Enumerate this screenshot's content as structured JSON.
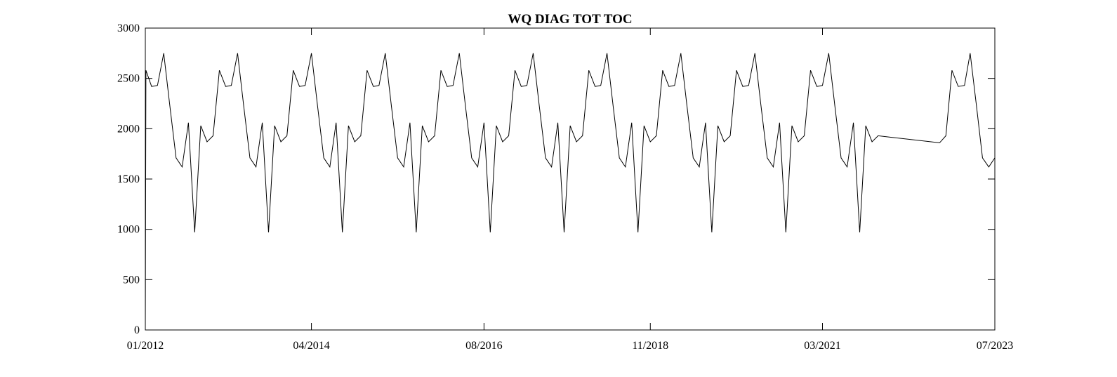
{
  "chart_data": {
    "type": "line",
    "title": "WQ DIAG TOT TOC",
    "xlabel": "",
    "ylabel": "",
    "ylim": [
      0,
      3000
    ],
    "xlim": [
      "2012-01-01",
      "2023-07-01"
    ],
    "grid": false,
    "yticks": [
      "0",
      "500",
      "1000",
      "1500",
      "2000",
      "2500",
      "3000"
    ],
    "xticks": [
      {
        "label": "01/2012",
        "date": "2012-01-01"
      },
      {
        "label": "04/2014",
        "date": "2014-04-01"
      },
      {
        "label": "08/2016",
        "date": "2016-08-01"
      },
      {
        "label": "11/2018",
        "date": "2018-11-01"
      },
      {
        "label": "03/2021",
        "date": "2021-03-01"
      },
      {
        "label": "07/2023",
        "date": "2023-07-01"
      }
    ],
    "series": [
      {
        "color": "#000000",
        "x": [
          "2012-01-01",
          "2012-01-04",
          "2012-02-01",
          "2012-03-01",
          "2012-04-01",
          "2012-05-01",
          "2012-06-01",
          "2012-07-01",
          "2012-08-01",
          "2012-09-01",
          "2012-10-01",
          "2012-11-01",
          "2012-12-01",
          "2013-01-01",
          "2013-02-01",
          "2013-03-01",
          "2013-04-01",
          "2013-05-01",
          "2013-06-01",
          "2013-07-01",
          "2013-08-01",
          "2013-09-01",
          "2013-10-01",
          "2013-11-01",
          "2013-12-01",
          "2014-01-01",
          "2014-02-01",
          "2014-03-01",
          "2014-04-01",
          "2014-05-01",
          "2014-06-01",
          "2014-07-01",
          "2014-08-01",
          "2014-09-01",
          "2014-10-01",
          "2014-11-01",
          "2014-12-01",
          "2015-01-01",
          "2015-02-01",
          "2015-03-01",
          "2015-04-01",
          "2015-05-01",
          "2015-06-01",
          "2015-07-01",
          "2015-08-01",
          "2015-09-01",
          "2015-10-01",
          "2015-11-01",
          "2015-12-01",
          "2016-01-01",
          "2016-02-01",
          "2016-03-01",
          "2016-04-01",
          "2016-05-01",
          "2016-06-01",
          "2016-07-01",
          "2016-08-01",
          "2016-09-01",
          "2016-10-01",
          "2016-11-01",
          "2016-12-01",
          "2017-01-01",
          "2017-02-01",
          "2017-03-01",
          "2017-04-01",
          "2017-05-01",
          "2017-06-01",
          "2017-07-01",
          "2017-08-01",
          "2017-09-01",
          "2017-10-01",
          "2017-11-01",
          "2017-12-01",
          "2018-01-01",
          "2018-02-01",
          "2018-03-01",
          "2018-04-01",
          "2018-05-01",
          "2018-06-01",
          "2018-07-01",
          "2018-08-01",
          "2018-09-01",
          "2018-10-01",
          "2018-11-01",
          "2018-12-01",
          "2019-01-01",
          "2019-02-01",
          "2019-03-01",
          "2019-04-01",
          "2019-05-01",
          "2019-06-01",
          "2019-07-01",
          "2019-08-01",
          "2019-09-01",
          "2019-10-01",
          "2019-11-01",
          "2019-12-01",
          "2020-01-01",
          "2020-02-01",
          "2020-03-01",
          "2020-04-01",
          "2020-05-01",
          "2020-06-01",
          "2020-07-01",
          "2020-08-01",
          "2020-09-01",
          "2020-10-01",
          "2020-11-01",
          "2020-12-01",
          "2021-01-01",
          "2021-02-01",
          "2021-03-01",
          "2021-04-01",
          "2021-05-01",
          "2021-06-01",
          "2021-07-01",
          "2021-08-01",
          "2021-09-01",
          "2021-10-01",
          "2021-11-01",
          "2021-12-01",
          "2022-10-01",
          "2022-11-01",
          "2022-12-01",
          "2023-01-01",
          "2023-02-01",
          "2023-03-01",
          "2023-04-01",
          "2023-05-01",
          "2023-06-01",
          "2023-07-01"
        ],
        "y": [
          0,
          2580,
          2420,
          2430,
          2750,
          2230,
          1710,
          1620,
          2060,
          970,
          2030,
          1870,
          1930,
          2580,
          2420,
          2430,
          2750,
          2230,
          1710,
          1620,
          2060,
          970,
          2030,
          1870,
          1930,
          2580,
          2420,
          2430,
          2750,
          2230,
          1710,
          1620,
          2060,
          970,
          2030,
          1870,
          1930,
          2580,
          2420,
          2430,
          2750,
          2230,
          1710,
          1620,
          2060,
          970,
          2030,
          1870,
          1930,
          2580,
          2420,
          2430,
          2750,
          2230,
          1710,
          1620,
          2060,
          970,
          2030,
          1870,
          1930,
          2580,
          2420,
          2430,
          2750,
          2230,
          1710,
          1620,
          2060,
          970,
          2030,
          1870,
          1930,
          2580,
          2420,
          2430,
          2750,
          2230,
          1710,
          1620,
          2060,
          970,
          2030,
          1870,
          1930,
          2580,
          2420,
          2430,
          2750,
          2230,
          1710,
          1620,
          2060,
          970,
          2030,
          1870,
          1930,
          2580,
          2420,
          2430,
          2750,
          2230,
          1710,
          1620,
          2060,
          970,
          2030,
          1870,
          1930,
          2580,
          2420,
          2430,
          2750,
          2230,
          1710,
          1620,
          2060,
          970,
          2030,
          1870,
          1930,
          1860,
          1930,
          2580,
          2420,
          2430,
          2750,
          2230,
          1710,
          1620,
          1710
        ]
      }
    ]
  }
}
